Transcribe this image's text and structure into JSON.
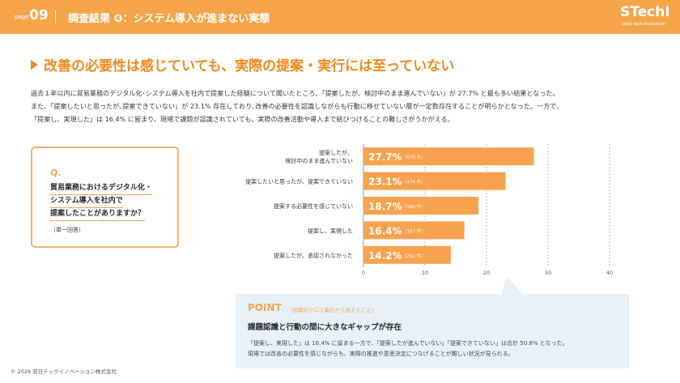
{
  "header": {
    "page_label": "page",
    "page_number": "09",
    "title": "調査結果 ❹：システム導入が進まない実態",
    "logo": "STechI",
    "logo_sub": "sojitz tech-innovation"
  },
  "headline": "改善の必要性は感じていても、実際の提案・実行には至っていない",
  "lead": {
    "line1": "過去１年以内に貿易業務のデジタル化･システム導入を社内で提案した経験について聞いたところ、「提案したが、検討中のまま進んでいない」が 27.7% と最も多い結果となった。",
    "line2": "また､「提案したいと思ったが､提案できていない」が 23.1% 存在しており､改善の必要性を認識しながらも行動に移せていない層が一定数存在することが明らかとなった。一方で、",
    "line3": "「提案し、実現した」は 16.4% に留まり、現場で課題が認識されていても、実際の改善活動や導入まで結びつけることの難しさがうかがえる。"
  },
  "question": {
    "mark": "Q.",
    "line1": "貿易業務におけるデジタル化・",
    "line2": "システム導入を社内で",
    "line3": "提案したことがありますか？",
    "note": "（単一回答）"
  },
  "chart_data": {
    "type": "bar",
    "orientation": "horizontal",
    "categories": [
      [
        "提案したが、",
        "検討中のまま進んでいない"
      ],
      [
        "提案したいと思ったが、提案できていない"
      ],
      [
        "提案する必要性を感じていない"
      ],
      [
        "提案し、実現した"
      ],
      [
        "提案したが、承認されなかった"
      ]
    ],
    "values": [
      27.7,
      23.1,
      18.7,
      16.4,
      14.2
    ],
    "value_labels": [
      "27.7%",
      "23.1%",
      "18.7%",
      "16.4%",
      "14.2%"
    ],
    "counts": [
      "（570 件）",
      "（476 件）",
      "（385 件）",
      "（337 件）",
      "（292 件）"
    ],
    "xlim": [
      0,
      40
    ],
    "xticks": [
      "0",
      "10",
      "20",
      "30",
      "40"
    ],
    "grid": true,
    "bar_color": "#f7a24e"
  },
  "point": {
    "title": "POINT",
    "subtitle": "（役職別クロス集計から見えたこと）",
    "heading": "課題認識と行動の間に大きなギャップが存在",
    "line1": "「提案し、実現した」は 16.4% に留まる一方で、「提案したが進んでいない」「提案できていない」は合計 50.8% となった。",
    "line2": "現場では改善の必要性を感じながらも、実際の推進や意思決定につなげることが難しい状況が見られる。"
  },
  "footer": {
    "copyright": "© 2026 双日テックイノベーション株式会社"
  }
}
